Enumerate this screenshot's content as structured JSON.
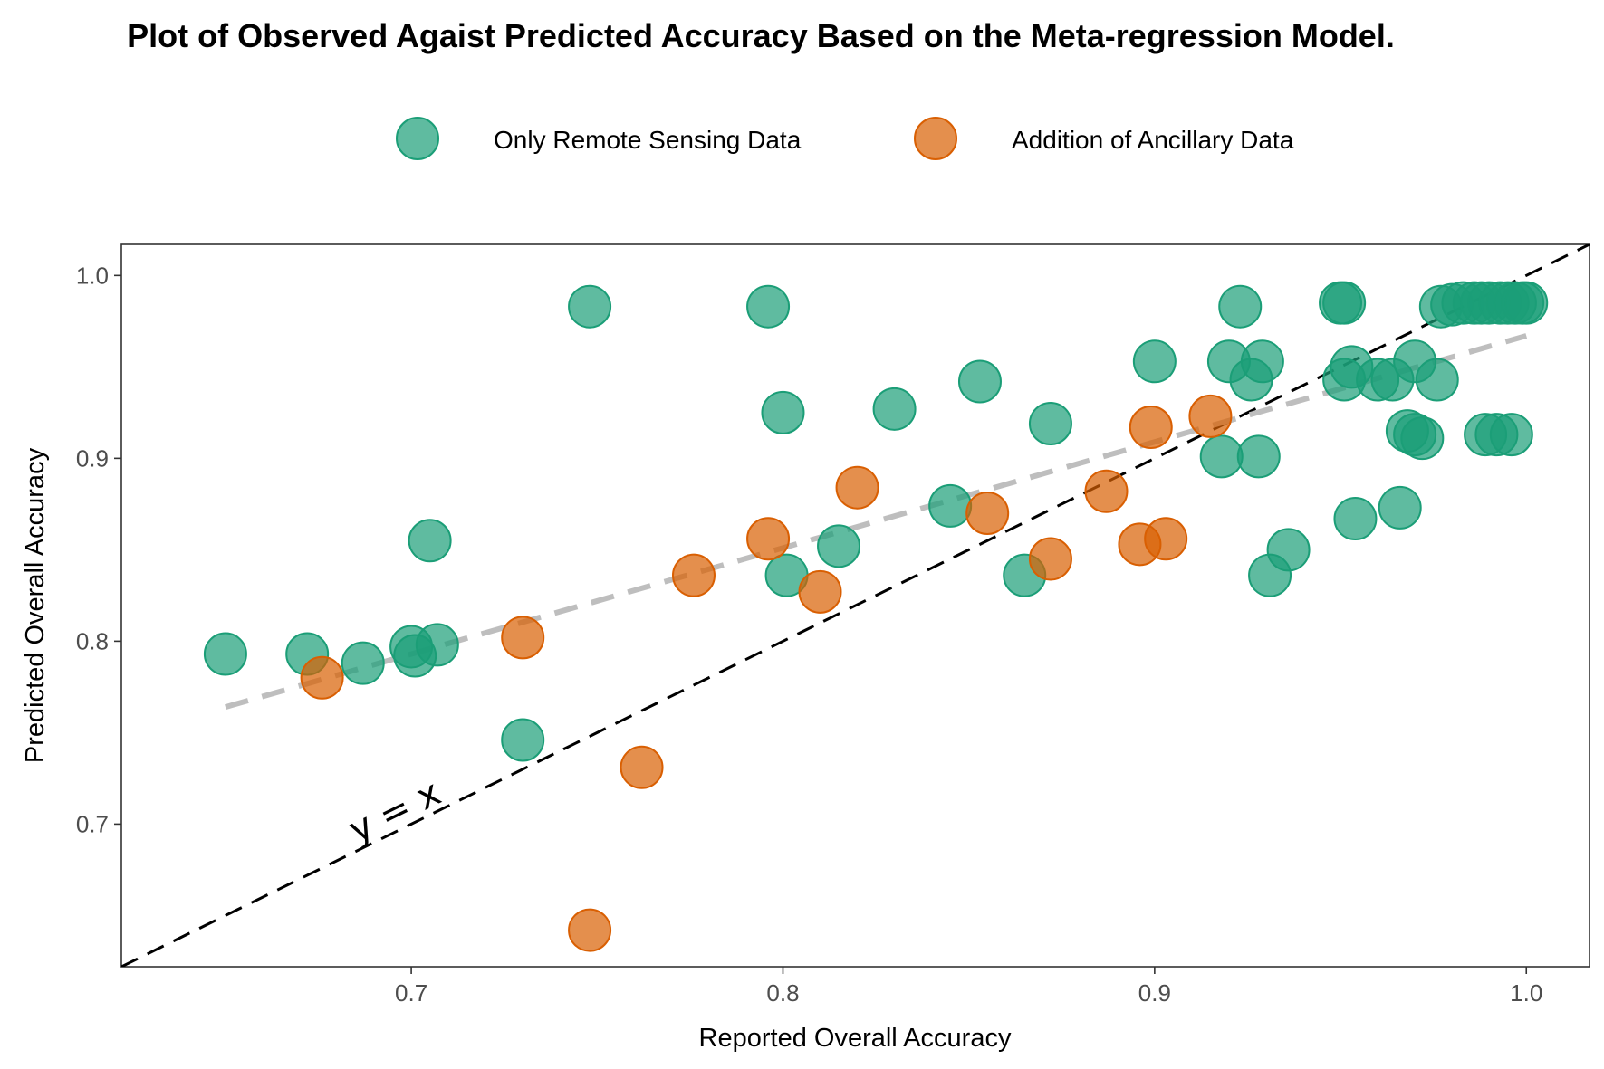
{
  "chart_data": {
    "type": "scatter",
    "title": "Plot of Observed Agaist Predicted Accuracy Based on the Meta-regression Model.",
    "xlabel": "Reported Overall Accuracy",
    "ylabel": "Predicted Overall Accuracy",
    "xlim": [
      0.622,
      1.017
    ],
    "ylim": [
      0.622,
      1.017
    ],
    "x_ticks": [
      0.7,
      0.8,
      0.9,
      1.0
    ],
    "x_tick_labels": [
      "0.7",
      "0.8",
      "0.9",
      "1.0"
    ],
    "y_ticks": [
      0.7,
      0.8,
      0.9,
      1.0
    ],
    "y_tick_labels": [
      "0.7",
      "0.8",
      "0.9",
      "1.0"
    ],
    "grid": false,
    "legend_position": "top",
    "series": [
      {
        "name": "Only Remote Sensing Data",
        "color": "#1b9e77",
        "points": [
          [
            0.65,
            0.793
          ],
          [
            0.672,
            0.793
          ],
          [
            0.687,
            0.788
          ],
          [
            0.7,
            0.797
          ],
          [
            0.701,
            0.792
          ],
          [
            0.707,
            0.798
          ],
          [
            0.705,
            0.855
          ],
          [
            0.73,
            0.746
          ],
          [
            0.748,
            0.983
          ],
          [
            0.796,
            0.983
          ],
          [
            0.8,
            0.925
          ],
          [
            0.801,
            0.836
          ],
          [
            0.815,
            0.852
          ],
          [
            0.83,
            0.927
          ],
          [
            0.845,
            0.874
          ],
          [
            0.853,
            0.942
          ],
          [
            0.865,
            0.836
          ],
          [
            0.872,
            0.919
          ],
          [
            0.9,
            0.953
          ],
          [
            0.918,
            0.901
          ],
          [
            0.92,
            0.953
          ],
          [
            0.923,
            0.983
          ],
          [
            0.926,
            0.943
          ],
          [
            0.928,
            0.901
          ],
          [
            0.929,
            0.953
          ],
          [
            0.931,
            0.836
          ],
          [
            0.936,
            0.85
          ],
          [
            0.95,
            0.985
          ],
          [
            0.951,
            0.985
          ],
          [
            0.951,
            0.943
          ],
          [
            0.953,
            0.95
          ],
          [
            0.954,
            0.867
          ],
          [
            0.96,
            0.943
          ],
          [
            0.964,
            0.943
          ],
          [
            0.966,
            0.873
          ],
          [
            0.968,
            0.915
          ],
          [
            0.97,
            0.913
          ],
          [
            0.97,
            0.953
          ],
          [
            0.972,
            0.911
          ],
          [
            0.976,
            0.943
          ],
          [
            0.977,
            0.983
          ],
          [
            0.98,
            0.984
          ],
          [
            0.983,
            0.985
          ],
          [
            0.986,
            0.985
          ],
          [
            0.988,
            0.985
          ],
          [
            0.989,
            0.913
          ],
          [
            0.99,
            0.985
          ],
          [
            0.992,
            0.913
          ],
          [
            0.993,
            0.985
          ],
          [
            0.995,
            0.985
          ],
          [
            0.996,
            0.913
          ],
          [
            0.997,
            0.985
          ],
          [
            0.999,
            0.985
          ],
          [
            1.0,
            0.985
          ]
        ]
      },
      {
        "name": "Addition of Ancillary Data",
        "color": "#d95f02",
        "points": [
          [
            0.676,
            0.78
          ],
          [
            0.73,
            0.802
          ],
          [
            0.748,
            0.642
          ],
          [
            0.762,
            0.731
          ],
          [
            0.776,
            0.836
          ],
          [
            0.796,
            0.856
          ],
          [
            0.81,
            0.827
          ],
          [
            0.82,
            0.884
          ],
          [
            0.855,
            0.87
          ],
          [
            0.872,
            0.845
          ],
          [
            0.887,
            0.882
          ],
          [
            0.896,
            0.853
          ],
          [
            0.899,
            0.917
          ],
          [
            0.903,
            0.856
          ],
          [
            0.915,
            0.923
          ]
        ]
      }
    ],
    "reference_lines": [
      {
        "label": "y = x",
        "slope": 1.0,
        "intercept": 0.0,
        "color": "#000000",
        "dash": true
      },
      {
        "label": "",
        "slope": 0.58,
        "intercept": 0.387,
        "x_range": [
          0.65,
          1.0
        ],
        "color": "#bebebe",
        "dash": true
      }
    ],
    "annotations": [
      {
        "text": "y = x"
      }
    ]
  }
}
